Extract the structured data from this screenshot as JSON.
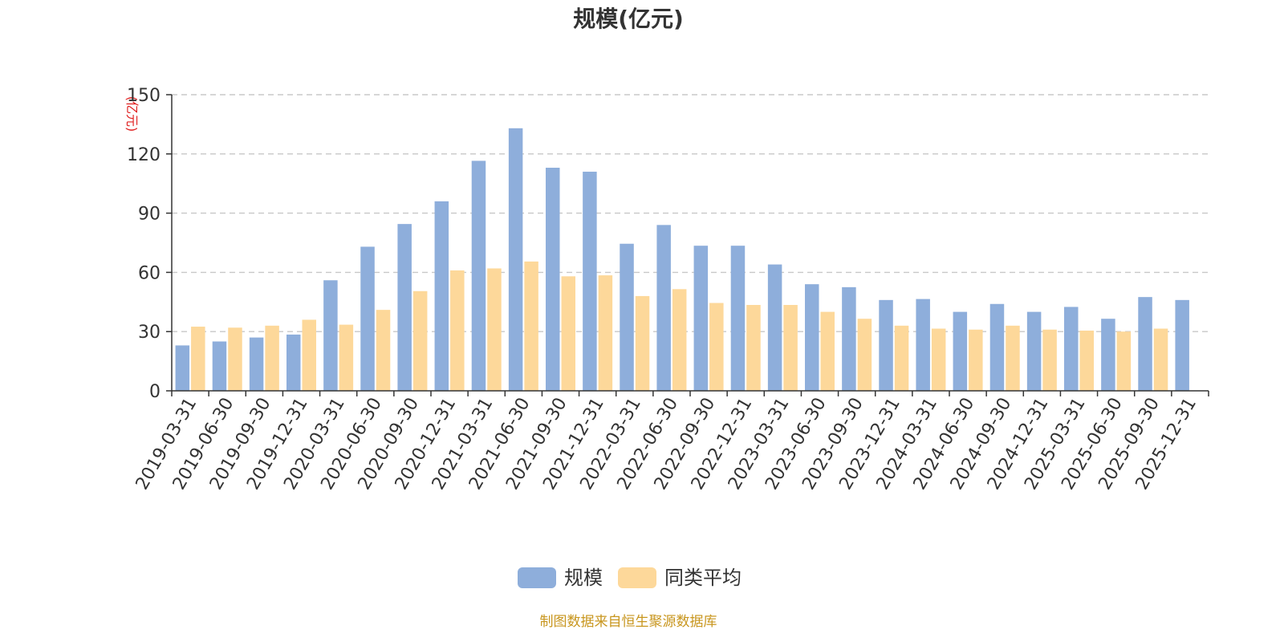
{
  "chart_data": {
    "type": "bar",
    "title": "规模(亿元)",
    "ylabel": "(亿元)",
    "ylim": [
      0,
      150
    ],
    "yticks": [
      0,
      30,
      60,
      90,
      120,
      150
    ],
    "grid": true,
    "legend_position": "bottom",
    "categories": [
      "2019-03-31",
      "2019-06-30",
      "2019-09-30",
      "2019-12-31",
      "2020-03-31",
      "2020-06-30",
      "2020-09-30",
      "2020-12-31",
      "2021-03-31",
      "2021-06-30",
      "2021-09-30",
      "2021-12-31",
      "2022-03-31",
      "2022-06-30",
      "2022-09-30",
      "2022-12-31",
      "2023-03-31",
      "2023-06-30",
      "2023-09-30",
      "2023-12-31",
      "2024-03-31",
      "2024-06-30",
      "2024-09-30",
      "2024-12-31",
      "2025-03-31",
      "2025-06-30",
      "2025-09-30",
      "2025-12-31"
    ],
    "series": [
      {
        "name": "规模",
        "color": "#8eaedb",
        "values": [
          23,
          25,
          27,
          28.5,
          56,
          73,
          84.5,
          96,
          116.5,
          133,
          113,
          111,
          74.5,
          84,
          73.5,
          73.5,
          64,
          54,
          52.5,
          46,
          46.5,
          40,
          44,
          40,
          42.5,
          36.5,
          47.5,
          46
        ]
      },
      {
        "name": "同类平均",
        "color": "#fdd89a",
        "values": [
          32.5,
          32,
          33,
          36,
          33.5,
          41,
          50.5,
          61,
          62,
          65.5,
          58,
          58.5,
          48,
          51.5,
          44.5,
          43.5,
          43.5,
          40,
          36.5,
          33,
          31.5,
          31,
          33,
          31,
          30.5,
          30,
          31.5,
          null
        ]
      }
    ],
    "source": "制图数据来自恒生聚源数据库",
    "unit_color": "#e02020",
    "source_color": "#c8961e"
  }
}
